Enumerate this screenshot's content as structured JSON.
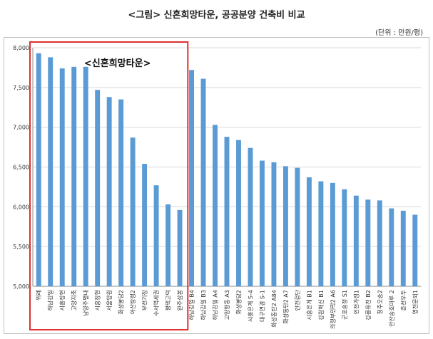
{
  "title": "<그림> 신혼희망타운, 공공분양 건축비 비교",
  "unit": "(단위 : 만원/평)",
  "colors": {
    "bar": "#5b9bd5",
    "grid": "#d9d9d9",
    "highlight": "#e03030"
  },
  "chart_data": {
    "type": "bar",
    "title": "<그림> 신혼희망타운, 공공분양 건축비 비교",
    "ylim": [
      5000,
      8000
    ],
    "yticks": [
      5000,
      5500,
      6000,
      6500,
      7000,
      7500,
      8000
    ],
    "grid": true,
    "annotation": "<신혼희망타운>",
    "highlight_range": [
      0,
      12
    ],
    "categories": [
      "위례",
      "하남감일",
      "시흥장현",
      "고양지축",
      "남양주별내",
      "시흥장현",
      "서울양원",
      "화성봉담2",
      "아산탕정2",
      "부천기장",
      "수서역세권",
      "평택고덕",
      "완주삼봉",
      "하남감일 B4",
      "하남감일 B3",
      "하남감일 A4",
      "고양향동 A3",
      "화성봉담2",
      "시흥은계 S-4",
      "대구연경 S-1",
      "화성동탄2 A84",
      "화성동탄2 A7",
      "인천검단",
      "시흥은계 B1",
      "강원혁신 B1",
      "의정부민락2 A6",
      "군포송정 S1",
      "인천가정1",
      "강릉유천 B2",
      "청주오송2",
      "안산송호마루 2",
      "춘천우두",
      "영천문외1"
    ],
    "values": [
      7930,
      7880,
      7740,
      7760,
      7760,
      7470,
      7380,
      7350,
      6870,
      6540,
      6270,
      6030,
      5960,
      7720,
      7610,
      7030,
      6880,
      6840,
      6740,
      6580,
      6560,
      6510,
      6490,
      6370,
      6320,
      6300,
      6220,
      6140,
      6090,
      6080,
      5980,
      5950,
      5900
    ]
  }
}
